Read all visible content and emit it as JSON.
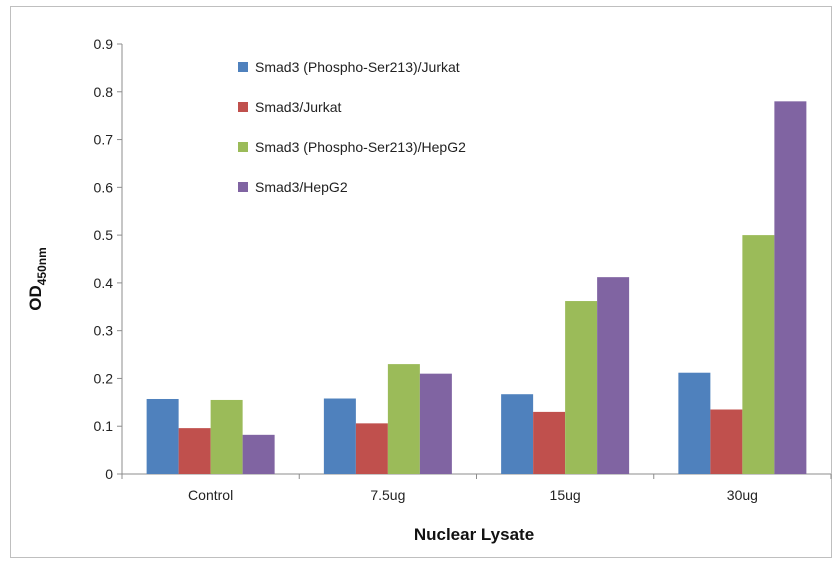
{
  "chart_data": {
    "type": "bar",
    "title": "",
    "xlabel": "Nuclear Lysate",
    "ylabel": "OD",
    "ylabel_subscript": "450nm",
    "categories": [
      "Control",
      "7.5ug",
      "15ug",
      "30ug"
    ],
    "ylim": [
      0,
      0.9
    ],
    "yticks": [
      "0",
      "0.1",
      "0.2",
      "0.3",
      "0.4",
      "0.5",
      "0.6",
      "0.7",
      "0.8",
      "0.9"
    ],
    "grid": false,
    "legend_position": "top-left",
    "series": [
      {
        "name": "Smad3 (Phospho-Ser213)/Jurkat",
        "color": "#4f81bd",
        "values": [
          0.157,
          0.158,
          0.167,
          0.212
        ]
      },
      {
        "name": "Smad3/Jurkat",
        "color": "#c0504d",
        "values": [
          0.096,
          0.106,
          0.13,
          0.135
        ]
      },
      {
        "name": "Smad3 (Phospho-Ser213)/HepG2",
        "color": "#9bbb59",
        "values": [
          0.155,
          0.23,
          0.362,
          0.5
        ]
      },
      {
        "name": "Smad3/HepG2",
        "color": "#8064a2",
        "values": [
          0.082,
          0.21,
          0.412,
          0.78
        ]
      }
    ]
  }
}
